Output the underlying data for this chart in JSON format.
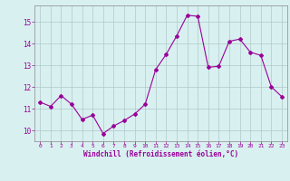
{
  "x": [
    0,
    1,
    2,
    3,
    4,
    5,
    6,
    7,
    8,
    9,
    10,
    11,
    12,
    13,
    14,
    15,
    16,
    17,
    18,
    19,
    20,
    21,
    22,
    23
  ],
  "y": [
    11.3,
    11.1,
    11.6,
    11.2,
    10.5,
    10.7,
    9.85,
    10.2,
    10.45,
    10.75,
    11.2,
    12.8,
    13.5,
    14.35,
    15.3,
    15.25,
    12.9,
    12.95,
    14.1,
    14.2,
    13.6,
    13.45,
    12.0,
    11.55
  ],
  "line_color": "#990099",
  "marker": "D",
  "marker_size": 2,
  "bg_color": "#d9f0f0",
  "grid_color": "#b0c8c8",
  "xlabel": "Windchill (Refroidissement éolien,°C)",
  "ylim": [
    9.5,
    15.75
  ],
  "xlim": [
    -0.5,
    23.5
  ],
  "yticks": [
    10,
    11,
    12,
    13,
    14,
    15
  ],
  "xticks": [
    0,
    1,
    2,
    3,
    4,
    5,
    6,
    7,
    8,
    9,
    10,
    11,
    12,
    13,
    14,
    15,
    16,
    17,
    18,
    19,
    20,
    21,
    22,
    23
  ],
  "tick_color": "#990099",
  "label_color": "#990099",
  "spine_color": "#888888",
  "x_tick_fontsize": 4.5,
  "y_tick_fontsize": 5.5,
  "xlabel_fontsize": 5.5
}
